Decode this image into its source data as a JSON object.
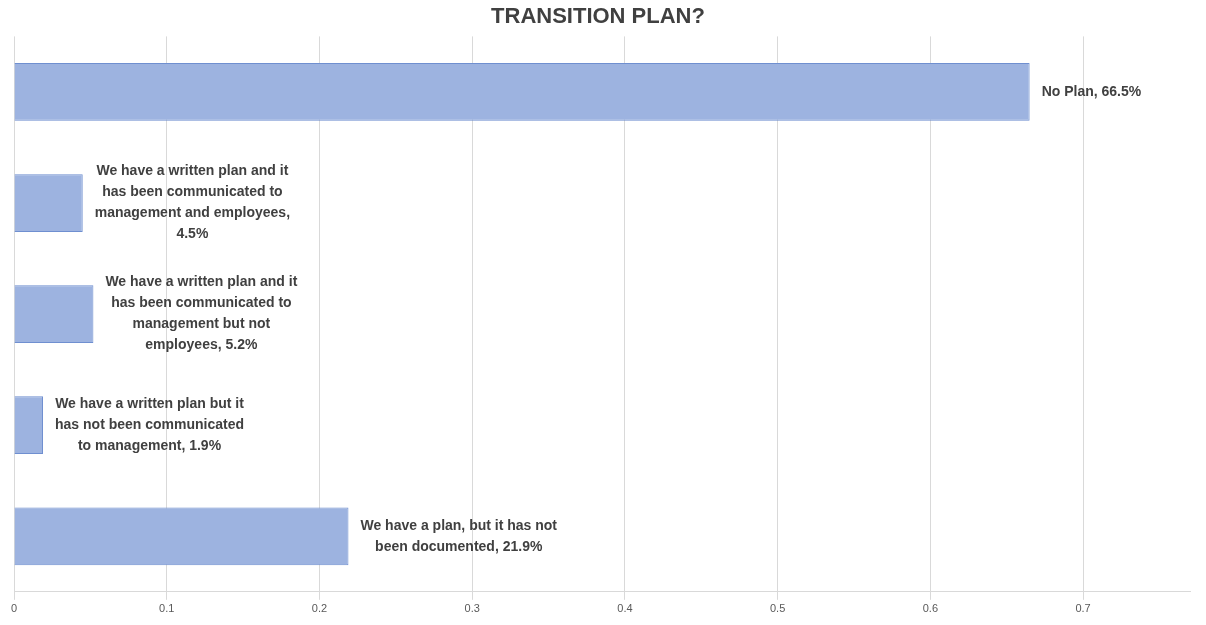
{
  "chart_data": {
    "type": "bar",
    "orientation": "horizontal",
    "title": "TRANSITION PLAN?",
    "categories": [
      null,
      null,
      null,
      null,
      null
    ],
    "values": [
      0.665,
      0.045,
      0.052,
      0.019,
      0.219
    ],
    "value_labels": [
      "No Plan, 66.5%",
      "We have a written plan and it has been communicated to management and employees, 4.5%",
      "We have a written plan and it has been communicated to management but not employees, 5.2%",
      "We have a written plan but it has not been communicated to management, 1.9%",
      "We have a plan, but it has not been documented, 21.9%"
    ],
    "color": "#9db3e0",
    "xlim": [
      0,
      0.77
    ],
    "xticks": [
      0,
      0.1,
      0.2,
      0.3,
      0.4,
      0.5,
      0.6,
      0.7
    ],
    "grid": "x",
    "legend": false
  }
}
